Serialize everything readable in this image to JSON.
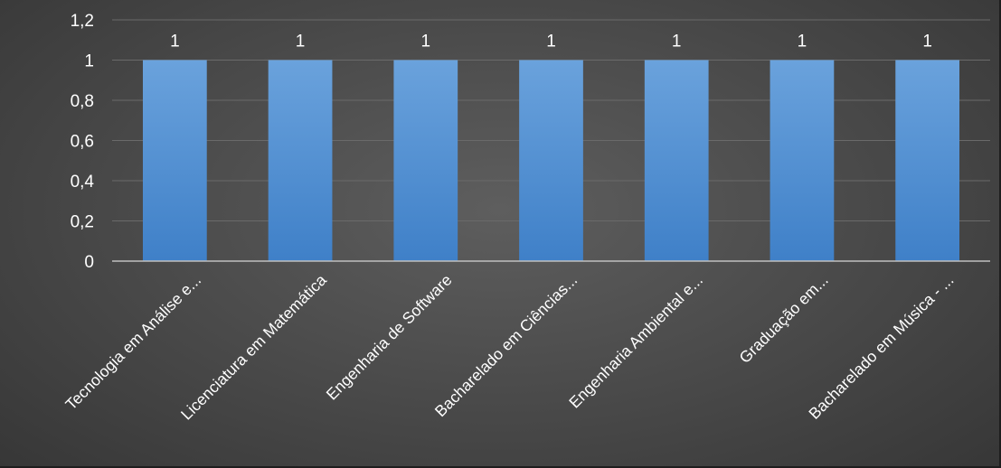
{
  "chart_data": {
    "type": "bar",
    "categories": [
      "Tecnologia em Análise e...",
      "Licenciatura em Matemática",
      "Engenharia de Software",
      "Bacharelado em Ciências...",
      "Engenharia Ambiental e...",
      "Graduação em...",
      "Bacharelado em Música - ..."
    ],
    "values": [
      1,
      1,
      1,
      1,
      1,
      1,
      1
    ],
    "data_labels": [
      "1",
      "1",
      "1",
      "1",
      "1",
      "1",
      "1"
    ],
    "y_ticks": [
      0,
      0.2,
      0.4,
      0.6,
      0.8,
      1,
      1.2
    ],
    "y_tick_labels": [
      "0",
      "0,2",
      "0,4",
      "0,6",
      "0,8",
      "1",
      "1,2"
    ],
    "ylim": [
      0,
      1.2
    ],
    "grid": true,
    "legend": "none",
    "title": "",
    "xlabel": "",
    "ylabel": "",
    "colors": {
      "bar_top": "#6aa2dc",
      "bar_bottom": "#3f80c8",
      "gridline": "#6a6a6a",
      "axis": "#bfbfbf",
      "text": "#ffffff"
    }
  }
}
